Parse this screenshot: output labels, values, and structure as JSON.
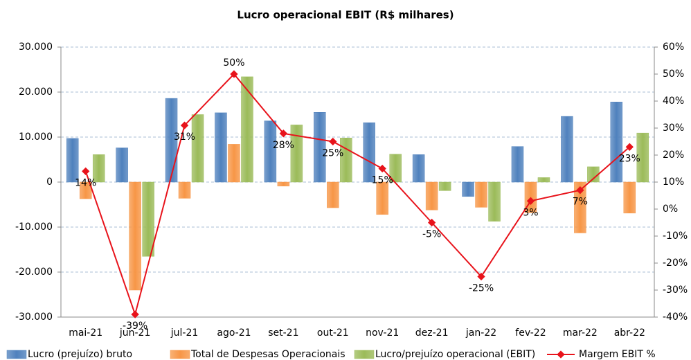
{
  "chart_data": {
    "type": "bar_line",
    "title": "Lucro operacional EBIT (R$ milhares)",
    "categories": [
      "mai-21",
      "jun-21",
      "jul-21",
      "ago-21",
      "set-21",
      "out-21",
      "nov-21",
      "dez-21",
      "jan-22",
      "fev-22",
      "mar-22",
      "abr-22"
    ],
    "series": [
      {
        "name": "Lucro (prejuízo) bruto",
        "color": "#4f81bd",
        "type": "bar",
        "values": [
          9700,
          7600,
          18600,
          15400,
          13600,
          15500,
          13200,
          6100,
          -3200,
          7900,
          14600,
          17800
        ]
      },
      {
        "name": "Total de Despesas Operacionais",
        "color": "#f79646",
        "type": "bar",
        "values": [
          -3700,
          -24000,
          -3600,
          8400,
          -900,
          -5700,
          -7200,
          -6200,
          -5600,
          -6800,
          -11300,
          -6900
        ]
      },
      {
        "name": "Lucro/prejuízo operacional (EBIT)",
        "color": "#9bbb59",
        "type": "bar",
        "values": [
          6100,
          -16500,
          15000,
          23400,
          12700,
          9800,
          6200,
          -1900,
          -8700,
          1000,
          3400,
          10900
        ]
      },
      {
        "name": "Margem EBIT %",
        "color": "#e8131b",
        "type": "line",
        "axis": "y2",
        "values": [
          14,
          -39,
          31,
          50,
          28,
          25,
          15,
          -5,
          -25,
          3,
          7,
          23
        ],
        "value_labels": [
          "14%",
          "-39%",
          "31%",
          "50%",
          "28%",
          "25%",
          "15%",
          "-5%",
          "-25%",
          "3%",
          "7%",
          "23%"
        ]
      }
    ],
    "ylim": [
      -30000,
      30000
    ],
    "yticks": [
      {
        "value": -30000,
        "label": "-30.000"
      },
      {
        "value": -20000,
        "label": "-20.000"
      },
      {
        "value": -10000,
        "label": "-10.000"
      },
      0,
      {
        "value": 10000,
        "label": "10.000"
      },
      {
        "value": 20000,
        "label": "20.000"
      },
      {
        "value": 30000,
        "label": "30.000"
      }
    ],
    "y2lim": [
      -40,
      60
    ],
    "y2ticks": [
      {
        "value": -40,
        "label": "-40%"
      },
      {
        "value": -30,
        "label": "-30%"
      },
      {
        "value": -20,
        "label": "-20%"
      },
      {
        "value": -10,
        "label": "-10%"
      },
      {
        "value": 0,
        "label": "0%"
      },
      {
        "value": 10,
        "label": "10%"
      },
      {
        "value": 20,
        "label": "20%"
      },
      {
        "value": 30,
        "label": "30%"
      },
      {
        "value": 40,
        "label": "40%"
      },
      {
        "value": 50,
        "label": "50%"
      },
      {
        "value": 60,
        "label": "60%"
      }
    ],
    "grid": true,
    "legend": "bottom"
  }
}
